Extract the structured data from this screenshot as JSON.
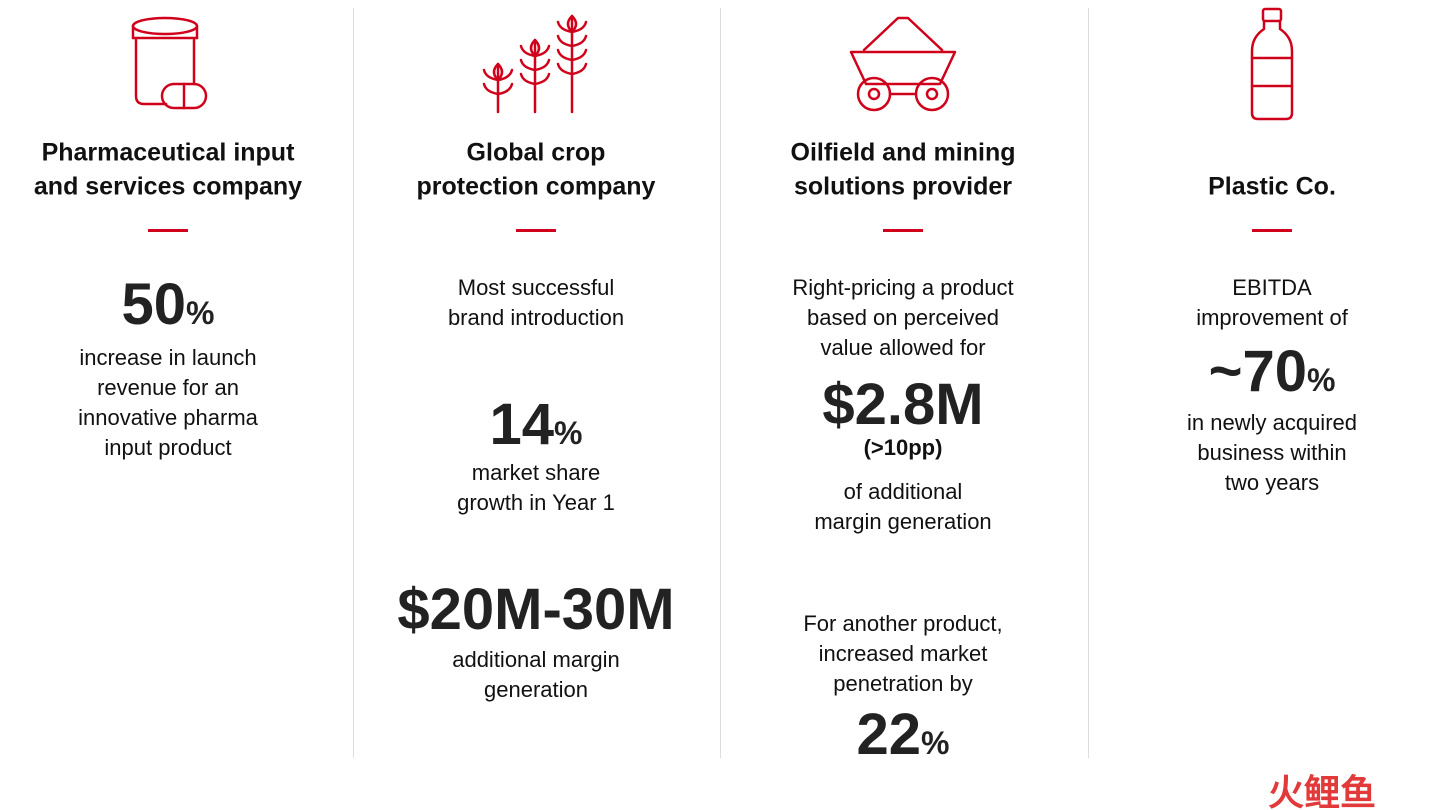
{
  "columns": [
    {
      "title": [
        "Pharmaceutical input",
        "and services company"
      ],
      "items": [
        {
          "stat": "50",
          "unit": "%"
        },
        {
          "lines": [
            "increase in launch",
            "revenue for an",
            "innovative pharma",
            "input product"
          ]
        }
      ]
    },
    {
      "title": [
        "Global crop",
        "protection company"
      ],
      "items": [
        {
          "lines": [
            "Most successful",
            "brand introduction"
          ]
        },
        {
          "stat": "14",
          "unit": "%"
        },
        {
          "lines": [
            "market share",
            "growth in Year 1"
          ]
        },
        {
          "stat": "$20M-30M"
        },
        {
          "lines": [
            "additional margin",
            "generation"
          ]
        }
      ]
    },
    {
      "title": [
        "Oilfield and mining",
        "solutions provider"
      ],
      "items": [
        {
          "lines": [
            "Right-pricing a product",
            "based on perceived",
            "value allowed for"
          ]
        },
        {
          "stat": "$2.8M"
        },
        {
          "note": "(>10pp)"
        },
        {
          "lines": [
            "of additional",
            "margin generation"
          ]
        },
        {
          "lines": [
            "For another product,",
            "increased market",
            "penetration by"
          ]
        },
        {
          "stat": "22",
          "unit": "%"
        }
      ]
    },
    {
      "title": [
        "Plastic Co."
      ],
      "items": [
        {
          "lines": [
            "EBITDA",
            "improvement of"
          ]
        },
        {
          "stat": "~70",
          "unit": "%"
        },
        {
          "lines": [
            "in newly acquired",
            "business within",
            "two years"
          ]
        }
      ]
    }
  ],
  "watermark": "火鲤鱼"
}
